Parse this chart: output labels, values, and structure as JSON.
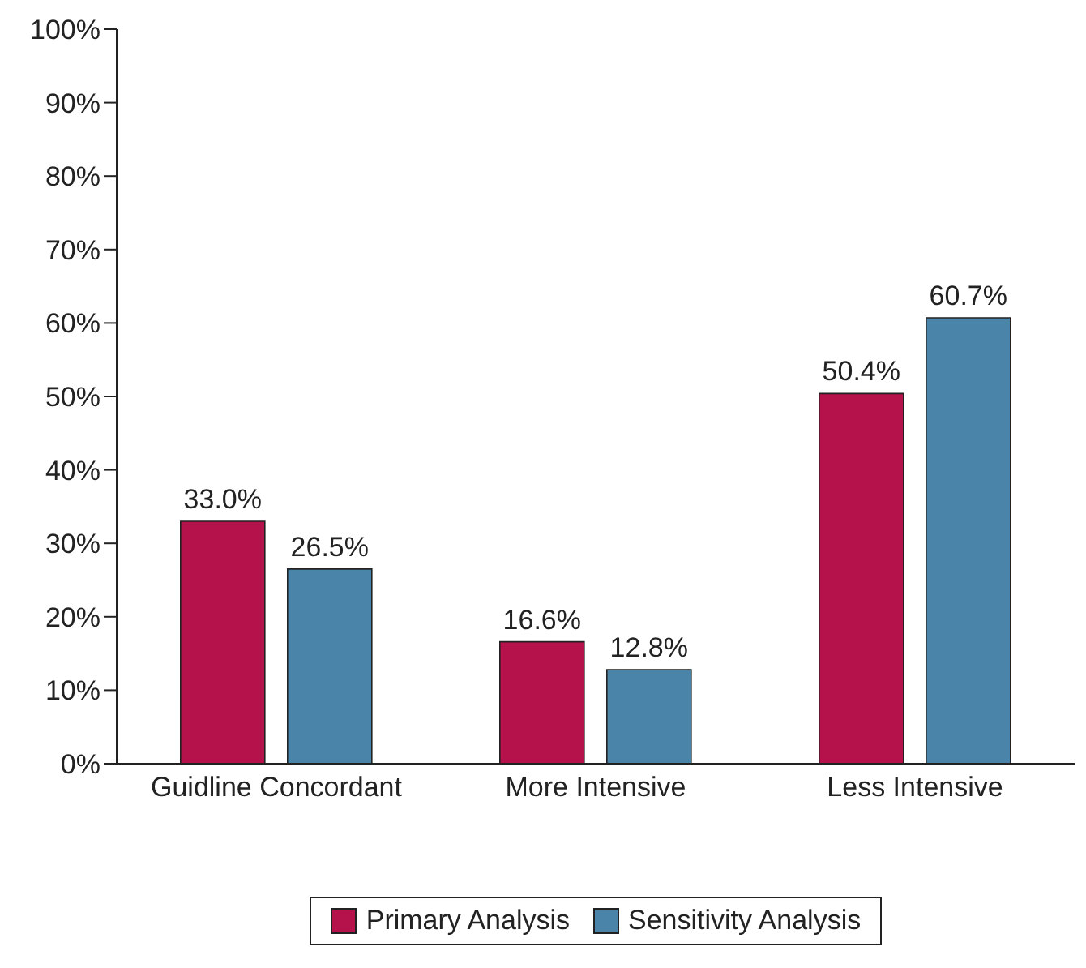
{
  "chart_data": {
    "type": "bar",
    "categories": [
      "Guidline Concordant",
      "More Intensive",
      "Less Intensive"
    ],
    "series": [
      {
        "name": "Primary Analysis",
        "color": "#b5114b",
        "values": [
          33.0,
          16.6,
          50.4
        ],
        "value_labels": [
          "33.0%",
          "16.6%",
          "50.4%"
        ]
      },
      {
        "name": "Sensitivity Analysis",
        "color": "#4a84a8",
        "values": [
          26.5,
          12.8,
          60.7
        ],
        "value_labels": [
          "26.5%",
          "12.8%",
          "60.7%"
        ]
      }
    ],
    "ylim": [
      0,
      100
    ],
    "yticks": [
      {
        "value": 0,
        "label": "0%"
      },
      {
        "value": 10,
        "label": "10%"
      },
      {
        "value": 20,
        "label": "20%"
      },
      {
        "value": 30,
        "label": "30%"
      },
      {
        "value": 40,
        "label": "40%"
      },
      {
        "value": 50,
        "label": "50%"
      },
      {
        "value": 60,
        "label": "60%"
      },
      {
        "value": 70,
        "label": "70%"
      },
      {
        "value": 80,
        "label": "80%"
      },
      {
        "value": 90,
        "label": "90%"
      },
      {
        "value": 100,
        "label": "100%"
      }
    ],
    "grid": false,
    "legend": "bottom"
  }
}
